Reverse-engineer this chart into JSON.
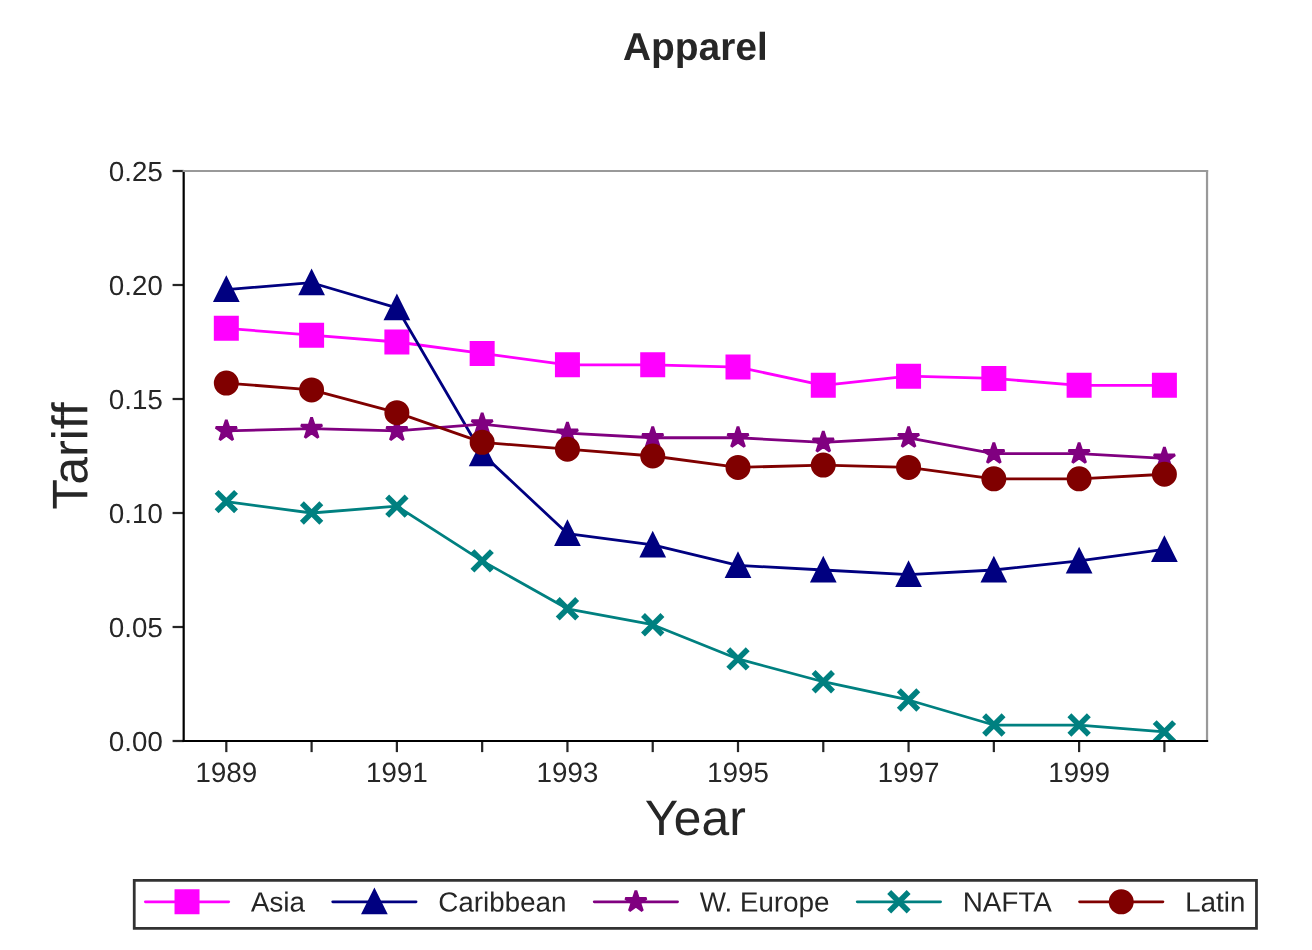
{
  "chart_data": {
    "type": "line",
    "title": "Apparel",
    "xlabel": "Year",
    "ylabel": "Tariff",
    "categories": [
      "1989",
      null,
      "1991",
      null,
      "1993",
      null,
      "1995",
      null,
      "1997",
      null,
      "1999",
      null
    ],
    "ylim": [
      0,
      0.25
    ],
    "yticks": [
      {
        "value": 0,
        "label": "0.00"
      },
      {
        "value": 0.05,
        "label": "0.05"
      },
      {
        "value": 0.1,
        "label": "0.10"
      },
      {
        "value": 0.15,
        "label": "0.15"
      },
      {
        "value": 0.2,
        "label": "0.20"
      },
      {
        "value": 0.25,
        "label": "0.25"
      }
    ],
    "grid": false,
    "legend": "bottom",
    "line_style": "solid",
    "series": [
      {
        "name": "Asia",
        "color": "#ff00ff",
        "marker": "square",
        "values": [
          0.181,
          0.178,
          0.175,
          0.17,
          0.165,
          0.165,
          0.164,
          0.156,
          0.16,
          0.159,
          0.156,
          0.156
        ]
      },
      {
        "name": "Caribbean",
        "color": "#000080",
        "marker": "triangle",
        "values": [
          0.198,
          0.201,
          0.19,
          0.126,
          0.091,
          0.086,
          0.077,
          0.075,
          0.073,
          0.075,
          0.079,
          0.084
        ]
      },
      {
        "name": "W. Europe",
        "color": "#800080",
        "marker": "star",
        "values": [
          0.136,
          0.137,
          0.136,
          0.139,
          0.135,
          0.133,
          0.133,
          0.131,
          0.133,
          0.126,
          0.126,
          0.124
        ]
      },
      {
        "name": "NAFTA",
        "color": "#008080",
        "marker": "cross",
        "values": [
          0.105,
          0.1,
          0.103,
          0.079,
          0.058,
          0.051,
          0.036,
          0.026,
          0.018,
          0.007,
          0.007,
          0.004
        ]
      },
      {
        "name": "Latin",
        "color": "#800000",
        "marker": "circle",
        "values": [
          0.157,
          0.154,
          0.144,
          0.131,
          0.128,
          0.125,
          0.12,
          0.121,
          0.12,
          0.115,
          0.115,
          0.117
        ]
      }
    ]
  }
}
